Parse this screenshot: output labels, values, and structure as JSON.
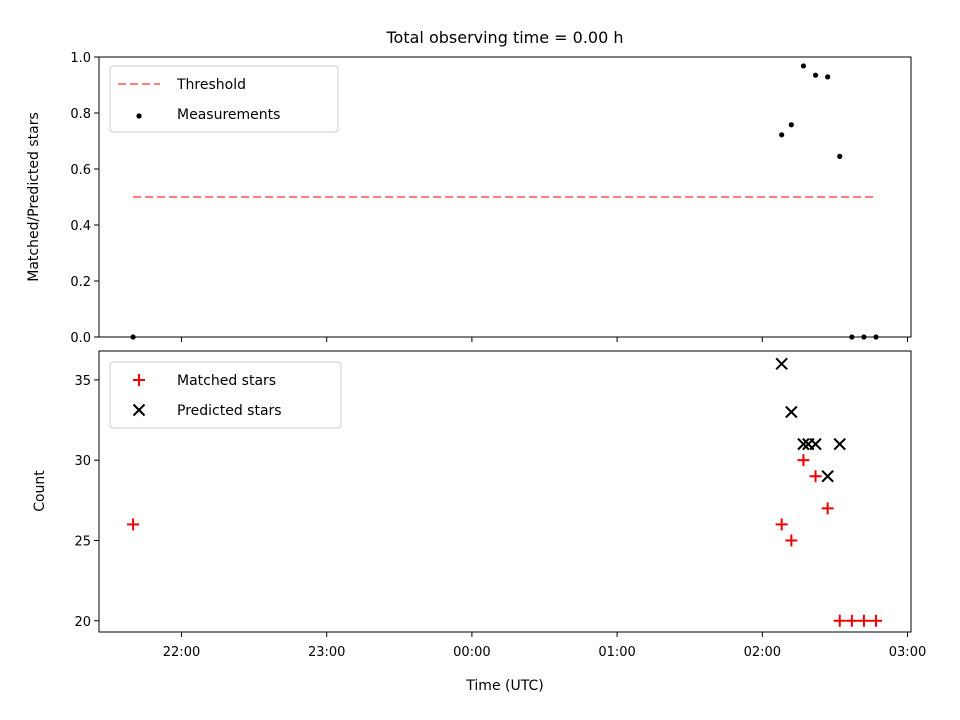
{
  "chart_data": [
    {
      "type": "scatter",
      "title": "Total observing time = 0.00 h",
      "xlabel": "",
      "ylabel": "Matched/Predicted stars",
      "ylim": [
        0.0,
        1.0
      ],
      "yticks": [
        "0.0",
        "0.2",
        "0.4",
        "0.6",
        "0.8",
        "1.0"
      ],
      "grid": false,
      "legend_position": "top-left",
      "threshold": {
        "name": "Threshold",
        "value": 0.5,
        "x_start": "21:40",
        "x_end": "02:47",
        "color": "#ff7f7f"
      },
      "series": [
        {
          "name": "Measurements",
          "color": "#000000",
          "marker": "dot",
          "points": [
            {
              "x": "21:40",
              "y": 0.0
            },
            {
              "x": "02:08",
              "y": 0.722
            },
            {
              "x": "02:12",
              "y": 0.758
            },
            {
              "x": "02:17",
              "y": 0.968
            },
            {
              "x": "02:22",
              "y": 0.935
            },
            {
              "x": "02:27",
              "y": 0.929
            },
            {
              "x": "02:32",
              "y": 0.645
            },
            {
              "x": "02:37",
              "y": 0.0
            },
            {
              "x": "02:42",
              "y": 0.0
            },
            {
              "x": "02:47",
              "y": 0.0
            }
          ]
        }
      ]
    },
    {
      "type": "scatter",
      "title": "",
      "xlabel": "Time (UTC)",
      "ylabel": "Count",
      "ylim": [
        19.3,
        36.8
      ],
      "yticks": [
        "20",
        "25",
        "30",
        "35"
      ],
      "xticks": [
        "22:00",
        "23:00",
        "00:00",
        "01:00",
        "02:00",
        "03:00"
      ],
      "grid": false,
      "legend_position": "top-left",
      "series": [
        {
          "name": "Matched stars",
          "color": "#ee0000",
          "marker": "plus",
          "points": [
            {
              "x": "21:40",
              "y": 26
            },
            {
              "x": "02:08",
              "y": 26
            },
            {
              "x": "02:12",
              "y": 25
            },
            {
              "x": "02:17",
              "y": 30
            },
            {
              "x": "02:22",
              "y": 29
            },
            {
              "x": "02:27",
              "y": 27
            },
            {
              "x": "02:32",
              "y": 20
            },
            {
              "x": "02:37",
              "y": 20
            },
            {
              "x": "02:42",
              "y": 20
            },
            {
              "x": "02:47",
              "y": 20
            }
          ]
        },
        {
          "name": "Predicted stars",
          "color": "#000000",
          "marker": "x",
          "points": [
            {
              "x": "02:08",
              "y": 36
            },
            {
              "x": "02:12",
              "y": 33
            },
            {
              "x": "02:17",
              "y": 31
            },
            {
              "x": "02:19",
              "y": 31
            },
            {
              "x": "02:22",
              "y": 31
            },
            {
              "x": "02:27",
              "y": 29
            },
            {
              "x": "02:32",
              "y": 31
            }
          ]
        }
      ]
    }
  ]
}
